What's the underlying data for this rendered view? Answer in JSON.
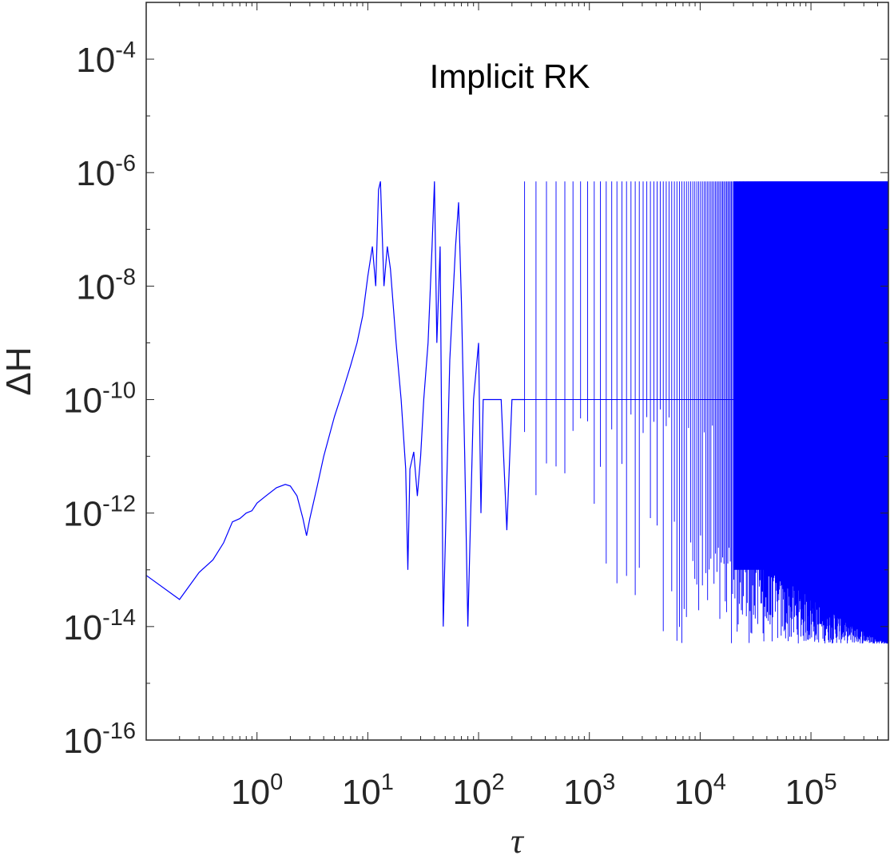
{
  "chart_data": {
    "type": "line",
    "title": "",
    "xlabel": "τ",
    "ylabel": "ΔH",
    "xscale": "log",
    "yscale": "log",
    "xlim": [
      0.1,
      500000
    ],
    "ylim": [
      1e-16,
      0.001
    ],
    "grid": false,
    "legend": "none",
    "annotation": "Implicit RK",
    "x_ticks": [
      {
        "base": "10",
        "exp": "0",
        "value": 1
      },
      {
        "base": "10",
        "exp": "1",
        "value": 10
      },
      {
        "base": "10",
        "exp": "2",
        "value": 100
      },
      {
        "base": "10",
        "exp": "3",
        "value": 1000
      },
      {
        "base": "10",
        "exp": "4",
        "value": 10000
      },
      {
        "base": "10",
        "exp": "5",
        "value": 100000
      }
    ],
    "y_ticks": [
      {
        "base": "10",
        "exp": "-4",
        "value": 0.0001
      },
      {
        "base": "10",
        "exp": "-6",
        "value": 1e-06
      },
      {
        "base": "10",
        "exp": "-8",
        "value": 1e-08
      },
      {
        "base": "10",
        "exp": "-10",
        "value": 1e-10
      },
      {
        "base": "10",
        "exp": "-12",
        "value": 1e-12
      },
      {
        "base": "10",
        "exp": "-14",
        "value": 1e-14
      },
      {
        "base": "10",
        "exp": "-16",
        "value": 1e-16
      }
    ],
    "series": [
      {
        "color": "#0000ff",
        "x": [
          0.1,
          0.2,
          0.3,
          0.4,
          0.5,
          0.6,
          0.7,
          0.8,
          0.9,
          1.0,
          1.2,
          1.5,
          1.8,
          2.0,
          2.3,
          2.6,
          2.8,
          3.0,
          3.5,
          4.0,
          5.0,
          6.0,
          7.0,
          8.0,
          9.0,
          10.0,
          11.0,
          11.8,
          12.5,
          13.0,
          14.0,
          15.0,
          16.0,
          18.0,
          20.0,
          22.0,
          23.0,
          24.0,
          26.0,
          28.0,
          30.0,
          32.0,
          35.0,
          38.0,
          40.0,
          42.0,
          45.0,
          48.0,
          55.0,
          62.0,
          66.0,
          70.0,
          75.0,
          80.0,
          90.0,
          100.0,
          105.0,
          110.0,
          120.0,
          140.0,
          160.0,
          180.0,
          200.0,
          230.0,
          260.0
        ],
        "y": [
          8e-14,
          3e-14,
          9e-14,
          1.5e-13,
          3e-13,
          7e-13,
          8e-13,
          1e-12,
          1.1e-12,
          1.5e-12,
          2e-12,
          2.8e-12,
          3.2e-12,
          3e-12,
          2e-12,
          8e-13,
          4e-13,
          8e-13,
          3e-12,
          1e-11,
          5e-11,
          1.5e-10,
          4e-10,
          1e-09,
          3e-09,
          1.5e-08,
          5e-08,
          1e-08,
          5e-07,
          7e-07,
          1e-08,
          5e-08,
          2e-08,
          1e-09,
          1e-10,
          6e-12,
          1e-13,
          6e-12,
          1.2e-11,
          2e-12,
          1e-11,
          1e-10,
          1e-09,
          5e-08,
          7e-07,
          1e-09,
          5e-08,
          1e-14,
          5e-10,
          5e-08,
          3e-07,
          5e-09,
          1e-11,
          1e-14,
          1e-10,
          1e-09,
          1e-12,
          1e-10,
          1e-10,
          1e-10,
          1e-10,
          5e-13,
          1e-10,
          1e-10,
          1e-10
        ]
      }
    ],
    "dense_band": {
      "x_start": 260,
      "x_end": 500000,
      "y_upper": 7e-07,
      "y_mid": 1e-10,
      "y_lower": 5e-15
    }
  }
}
